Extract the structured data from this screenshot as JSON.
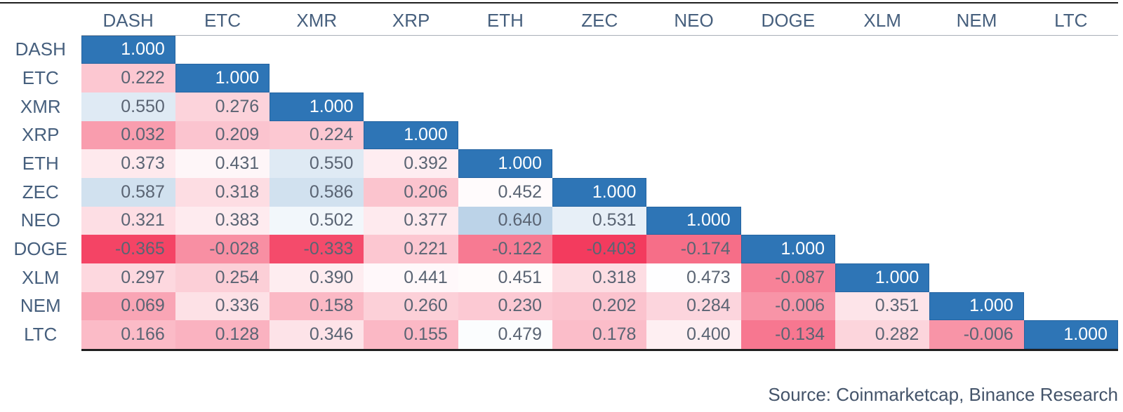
{
  "source_note": "Source: Coinmarketcap, Binance Research",
  "colors": {
    "header_text": "#465F7D",
    "cell_text": "#5A6473",
    "diagonal_text": "#FFFFFF",
    "source_text": "#44546A",
    "rule_dark": "#1F1F1F",
    "rule_light": "#A9AFB8"
  },
  "chart_data": {
    "type": "heatmap",
    "subtype": "correlation-matrix-lower-triangle",
    "labels": [
      "DASH",
      "ETC",
      "XMR",
      "XRP",
      "ETH",
      "ZEC",
      "NEO",
      "DOGE",
      "XLM",
      "NEM",
      "LTC"
    ],
    "cells": [
      [
        1.0
      ],
      [
        0.222,
        1.0
      ],
      [
        0.55,
        0.276,
        1.0
      ],
      [
        0.032,
        0.209,
        0.224,
        1.0
      ],
      [
        0.373,
        0.431,
        0.55,
        0.392,
        1.0
      ],
      [
        0.587,
        0.318,
        0.586,
        0.206,
        0.452,
        1.0
      ],
      [
        0.321,
        0.383,
        0.502,
        0.377,
        0.64,
        0.531,
        1.0
      ],
      [
        -0.365,
        -0.028,
        -0.333,
        0.221,
        -0.122,
        -0.403,
        -0.174,
        1.0
      ],
      [
        0.297,
        0.254,
        0.39,
        0.441,
        0.451,
        0.318,
        0.473,
        -0.087,
        1.0
      ],
      [
        0.069,
        0.336,
        0.158,
        0.26,
        0.23,
        0.202,
        0.284,
        -0.006,
        0.351,
        1.0
      ],
      [
        0.166,
        0.128,
        0.346,
        0.155,
        0.479,
        0.178,
        0.4,
        -0.134,
        0.282,
        -0.006,
        1.0
      ]
    ],
    "value_decimals": 3,
    "color_scale": {
      "min_value": -0.403,
      "mid_value": 0.47,
      "max_value": 1.0,
      "min_color": "#F33B5E",
      "mid_color": "#FFFFFF",
      "max_color": "#2E75B6"
    },
    "legend": "none",
    "grid": "off"
  }
}
